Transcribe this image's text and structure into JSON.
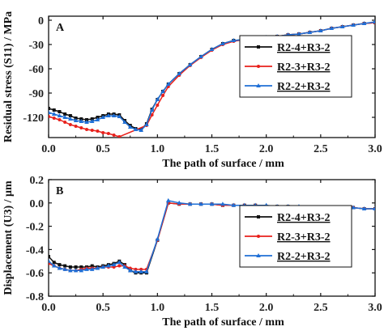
{
  "chart_data": [
    {
      "type": "line",
      "panel_label": "A",
      "xlabel": "The path of surface / mm",
      "ylabel": "Residual stress (S11) / MPa",
      "xlim": [
        0.0,
        3.0
      ],
      "ylim": [
        -145,
        5
      ],
      "xticks": [
        "0.0",
        "0.5",
        "1.0",
        "1.5",
        "2.0",
        "2.5",
        "3.0"
      ],
      "yticks": [
        "0",
        "-30",
        "-60",
        "-90",
        "-120"
      ],
      "legend_position": "top-right",
      "series": [
        {
          "name": "R2-4+R3-2",
          "color": "#111111",
          "marker": "square",
          "x": [
            0.0,
            0.05,
            0.1,
            0.15,
            0.2,
            0.25,
            0.3,
            0.35,
            0.4,
            0.45,
            0.5,
            0.55,
            0.6,
            0.65,
            0.7,
            0.75,
            0.8,
            0.85,
            0.9,
            0.95,
            1.0,
            1.05,
            1.1,
            1.2,
            1.3,
            1.4,
            1.5,
            1.6,
            1.7,
            1.8,
            1.9,
            2.0,
            2.1,
            2.2,
            2.3,
            2.4,
            2.5,
            2.6,
            2.7,
            2.8,
            2.9,
            3.0
          ],
          "y": [
            -109,
            -111,
            -113,
            -116,
            -118,
            -121,
            -122,
            -123,
            -122,
            -120,
            -118,
            -116,
            -116,
            -117,
            -124,
            -130,
            -134,
            -135,
            -128,
            -110,
            -98,
            -88,
            -79,
            -66,
            -55,
            -45,
            -36,
            -29,
            -25,
            -24,
            -23,
            -21,
            -20,
            -18,
            -17,
            -15,
            -13,
            -10,
            -8,
            -6,
            -4,
            -3
          ]
        },
        {
          "name": "R2-3+R3-2",
          "color": "#e8211c",
          "marker": "circle",
          "x": [
            0.0,
            0.05,
            0.1,
            0.15,
            0.2,
            0.25,
            0.3,
            0.35,
            0.4,
            0.45,
            0.5,
            0.55,
            0.6,
            0.65,
            0.9,
            0.95,
            1.0,
            1.05,
            1.1,
            1.2,
            1.3,
            1.4,
            1.5,
            1.6,
            1.7,
            1.8,
            1.9,
            2.0,
            2.1,
            2.2,
            2.3,
            2.4,
            2.5,
            2.6,
            2.7,
            2.8,
            2.9,
            3.0
          ],
          "y": [
            -119,
            -121,
            -123,
            -126,
            -129,
            -131,
            -133,
            -135,
            -136,
            -137,
            -139,
            -140,
            -142,
            -144,
            -130,
            -117,
            -105,
            -93,
            -82,
            -68,
            -56,
            -46,
            -37,
            -30,
            -26,
            -24,
            -23,
            -21,
            -20,
            -18,
            -17,
            -15,
            -13,
            -10,
            -8,
            -6,
            -4,
            -3
          ]
        },
        {
          "name": "R2-2+R3-2",
          "color": "#1f6fd6",
          "marker": "triangle",
          "x": [
            0.0,
            0.05,
            0.1,
            0.15,
            0.2,
            0.25,
            0.3,
            0.35,
            0.4,
            0.45,
            0.5,
            0.55,
            0.6,
            0.65,
            0.7,
            0.75,
            0.8,
            0.85,
            0.9,
            0.95,
            1.0,
            1.05,
            1.1,
            1.2,
            1.3,
            1.4,
            1.5,
            1.6,
            1.7,
            1.8,
            1.9,
            2.0,
            2.1,
            2.2,
            2.3,
            2.4,
            2.5,
            2.6,
            2.7,
            2.8,
            2.9,
            3.0
          ],
          "y": [
            -114,
            -116,
            -118,
            -120,
            -122,
            -124,
            -125,
            -126,
            -125,
            -123,
            -120,
            -118,
            -118,
            -119,
            -126,
            -132,
            -135,
            -136,
            -129,
            -111,
            -98,
            -88,
            -79,
            -66,
            -55,
            -45,
            -36,
            -29,
            -25,
            -24,
            -23,
            -21,
            -20,
            -18,
            -17,
            -15,
            -13,
            -10,
            -8,
            -6,
            -4,
            -2
          ]
        }
      ]
    },
    {
      "type": "line",
      "panel_label": "B",
      "xlabel": "The path of surface / mm",
      "ylabel": "Displacement (U3) / μm",
      "xlim": [
        0.0,
        3.0
      ],
      "ylim": [
        -0.8,
        0.2
      ],
      "xticks": [
        "0.0",
        "0.5",
        "1.0",
        "1.5",
        "2.0",
        "2.5",
        "3.0"
      ],
      "yticks": [
        "0.2",
        "0.0",
        "-0.2",
        "-0.4",
        "-0.6",
        "-0.8"
      ],
      "legend_position": "right",
      "series": [
        {
          "name": "R2-4+R3-2",
          "color": "#111111",
          "marker": "square",
          "x": [
            0.0,
            0.05,
            0.1,
            0.15,
            0.2,
            0.25,
            0.3,
            0.35,
            0.4,
            0.45,
            0.5,
            0.55,
            0.6,
            0.65,
            0.7,
            0.75,
            0.8,
            0.85,
            0.9,
            1.0,
            1.1,
            1.2,
            1.3,
            1.4,
            1.5,
            1.6,
            1.7,
            1.8,
            1.9,
            2.0,
            2.1,
            2.2,
            2.3,
            2.4,
            2.5,
            2.6,
            2.7,
            2.8,
            2.9,
            3.0
          ],
          "y": [
            -0.46,
            -0.51,
            -0.53,
            -0.54,
            -0.55,
            -0.55,
            -0.55,
            -0.55,
            -0.54,
            -0.55,
            -0.54,
            -0.53,
            -0.52,
            -0.5,
            -0.53,
            -0.58,
            -0.6,
            -0.6,
            -0.6,
            -0.32,
            0.0,
            -0.01,
            -0.01,
            -0.01,
            -0.01,
            -0.02,
            -0.02,
            -0.02,
            -0.02,
            -0.03,
            -0.03,
            -0.03,
            -0.04,
            -0.04,
            -0.04,
            -0.04,
            -0.04,
            -0.04,
            -0.05,
            -0.05
          ]
        },
        {
          "name": "R2-3+R3-2",
          "color": "#e8211c",
          "marker": "circle",
          "x": [
            0.0,
            0.05,
            0.1,
            0.15,
            0.2,
            0.25,
            0.3,
            0.35,
            0.4,
            0.45,
            0.5,
            0.55,
            0.6,
            0.65,
            0.7,
            0.75,
            0.8,
            0.85,
            0.9,
            1.0,
            1.1,
            1.2,
            1.3,
            1.4,
            1.5,
            1.6,
            1.7,
            1.8,
            1.9,
            2.0,
            2.1,
            2.2,
            2.3,
            2.4,
            2.5,
            2.6,
            2.7,
            2.8,
            2.9,
            3.0
          ],
          "y": [
            -0.52,
            -0.54,
            -0.56,
            -0.57,
            -0.58,
            -0.58,
            -0.57,
            -0.56,
            -0.56,
            -0.56,
            -0.55,
            -0.55,
            -0.55,
            -0.54,
            -0.54,
            -0.56,
            -0.57,
            -0.57,
            -0.57,
            -0.32,
            0.0,
            -0.01,
            -0.01,
            -0.01,
            -0.01,
            -0.02,
            -0.02,
            -0.02,
            -0.02,
            -0.03,
            -0.03,
            -0.03,
            -0.04,
            -0.04,
            -0.04,
            -0.04,
            -0.04,
            -0.04,
            -0.05,
            -0.05
          ]
        },
        {
          "name": "R2-2+R3-2",
          "color": "#1f6fd6",
          "marker": "triangle",
          "x": [
            0.0,
            0.05,
            0.1,
            0.15,
            0.2,
            0.25,
            0.3,
            0.35,
            0.4,
            0.45,
            0.5,
            0.55,
            0.6,
            0.65,
            0.7,
            0.75,
            0.8,
            0.85,
            0.9,
            1.0,
            1.1,
            1.2,
            1.3,
            1.4,
            1.5,
            1.6,
            1.7,
            1.8,
            1.9,
            2.0,
            2.1,
            2.2,
            2.3,
            2.4,
            2.5,
            2.6,
            2.7,
            2.8,
            2.9,
            3.0
          ],
          "y": [
            -0.5,
            -0.54,
            -0.56,
            -0.57,
            -0.58,
            -0.58,
            -0.58,
            -0.57,
            -0.57,
            -0.56,
            -0.55,
            -0.54,
            -0.53,
            -0.51,
            -0.55,
            -0.58,
            -0.59,
            -0.59,
            -0.59,
            -0.31,
            0.02,
            0.0,
            -0.01,
            -0.01,
            -0.01,
            -0.01,
            -0.02,
            -0.02,
            -0.02,
            -0.02,
            -0.03,
            -0.03,
            -0.03,
            -0.04,
            -0.04,
            -0.04,
            -0.04,
            -0.04,
            -0.05,
            -0.05
          ]
        }
      ]
    }
  ]
}
